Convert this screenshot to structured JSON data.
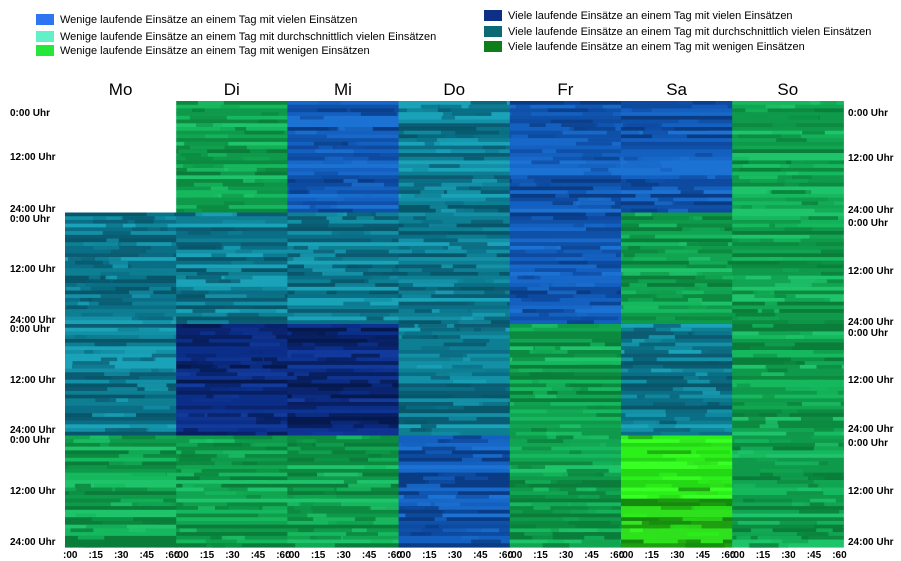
{
  "chart_data": {
    "type": "heatmap",
    "legend": [
      {
        "label": "Wenige laufende Einsätze an einem Tag mit vielen Einsätzen",
        "color": "#2f74f0"
      },
      {
        "label": "Wenige laufende Einsätze an einem Tag mit durchschnittlich vielen Einsätzen",
        "color": "#62f0c6"
      },
      {
        "label": "Wenige laufende Einsätze an einem Tag mit wenigen Einsätzen",
        "color": "#26e63a"
      },
      {
        "label": "Viele laufende Einsätze an einem Tag mit vielen Einsätzen",
        "color": "#0d2f86"
      },
      {
        "label": "Viele laufende Einsätze an einem Tag mit durchschnittlich vielen Einsätzen",
        "color": "#0b6a73"
      },
      {
        "label": "Viele laufende Einsätze an einem Tag mit wenigen Einsätzen",
        "color": "#0e7d1a"
      }
    ],
    "days": [
      "Mo",
      "Di",
      "Mi",
      "Do",
      "Fr",
      "Sa",
      "So"
    ],
    "time_labels": [
      "0:00 Uhr",
      "12:00 Uhr",
      "24:00 Uhr"
    ],
    "x_ticks": [
      ":00",
      ":15",
      ":30",
      ":45",
      ":60"
    ],
    "weeks": [
      {
        "cells": [
          "none",
          "green",
          "blue",
          "teal",
          "blue",
          "blue",
          "green"
        ]
      },
      {
        "cells": [
          "teal",
          "teal",
          "teal",
          "teal",
          "blue",
          "green",
          "green"
        ]
      },
      {
        "cells": [
          "teal",
          "darkblue",
          "darkblue",
          "teal",
          "green",
          "teal",
          "green"
        ]
      },
      {
        "cells": [
          "green",
          "green",
          "green",
          "blue",
          "green",
          "lime",
          "green"
        ]
      }
    ],
    "palettes": {
      "green": [
        "#0e9a4a",
        "#16b85e",
        "#0c8a40",
        "#1fc46a",
        "#11a552",
        "#0a7d3a"
      ],
      "teal": [
        "#0a6f86",
        "#138fa6",
        "#0b5c72",
        "#1aa3b8",
        "#0e7e92",
        "#07566a"
      ],
      "blue": [
        "#1460c0",
        "#0d4aa0",
        "#1c72d2",
        "#0a3c86",
        "#1768c8",
        "#0f50a8"
      ],
      "darkblue": [
        "#0b2e88",
        "#0a2470",
        "#123a9c",
        "#081f60",
        "#0e3390",
        "#06194e"
      ],
      "lime": [
        "#2cf01a",
        "#38ff24",
        "#24d816",
        "#1f9e12",
        "#2fe11c",
        "#168a0e"
      ]
    }
  }
}
